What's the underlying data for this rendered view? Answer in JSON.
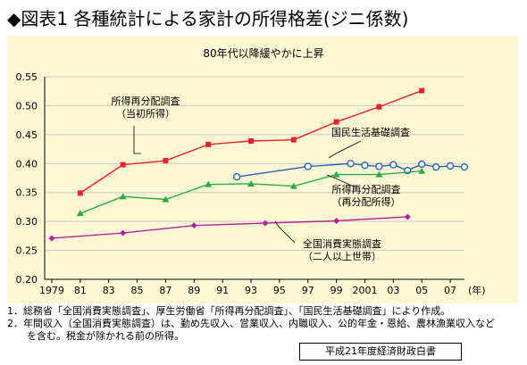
{
  "header": {
    "title": "◆図表1 各種統計による家計の所得格差(ジニ係数)"
  },
  "chart_data": {
    "type": "line",
    "title": "80年代以降緩やかに上昇",
    "ylim": [
      0.2,
      0.55
    ],
    "xlim": [
      1978.5,
      2008
    ],
    "yticks": [
      "0.20",
      "0.25",
      "0.30",
      "0.35",
      "0.40",
      "0.45",
      "0.50",
      "0.55"
    ],
    "ytick_values": [
      0.2,
      0.25,
      0.3,
      0.35,
      0.4,
      0.45,
      0.5,
      0.55
    ],
    "xticks": [
      {
        "x": 1979,
        "label": "1979"
      },
      {
        "x": 1981,
        "label": "81"
      },
      {
        "x": 1983,
        "label": "83"
      },
      {
        "x": 1985,
        "label": "85"
      },
      {
        "x": 1987,
        "label": "87"
      },
      {
        "x": 1989,
        "label": "89"
      },
      {
        "x": 1991,
        "label": "91"
      },
      {
        "x": 1993,
        "label": "93"
      },
      {
        "x": 1995,
        "label": "95"
      },
      {
        "x": 1997,
        "label": "97"
      },
      {
        "x": 1999,
        "label": "99"
      },
      {
        "x": 2001,
        "label": "2001"
      },
      {
        "x": 2003,
        "label": "03"
      },
      {
        "x": 2005,
        "label": "05"
      },
      {
        "x": 2007,
        "label": "07"
      }
    ],
    "x_unit": "(年)",
    "grid": true,
    "series": [
      {
        "name": "所得再分配調査(当初所得)",
        "color": "#e8202a",
        "marker": "square",
        "points": [
          [
            1981,
            0.349
          ],
          [
            1984,
            0.398
          ],
          [
            1987,
            0.405
          ],
          [
            1990,
            0.433
          ],
          [
            1993,
            0.439
          ],
          [
            1996,
            0.441
          ],
          [
            1999,
            0.472
          ],
          [
            2002,
            0.498
          ],
          [
            2005,
            0.526
          ]
        ]
      },
      {
        "name": "国民生活基礎調査",
        "color": "#2a62b0",
        "marker": "circle-open",
        "points": [
          [
            1992,
            0.377
          ],
          [
            1997,
            0.395
          ],
          [
            2000,
            0.4
          ],
          [
            2001,
            0.397
          ],
          [
            2002,
            0.395
          ],
          [
            2003,
            0.398
          ],
          [
            2004,
            0.388
          ],
          [
            2005,
            0.399
          ],
          [
            2006,
            0.394
          ],
          [
            2007,
            0.396
          ],
          [
            2008,
            0.394
          ]
        ]
      },
      {
        "name": "所得再分配調査(再分配所得)",
        "color": "#2eaa48",
        "marker": "triangle",
        "points": [
          [
            1981,
            0.314
          ],
          [
            1984,
            0.343
          ],
          [
            1987,
            0.338
          ],
          [
            1990,
            0.364
          ],
          [
            1993,
            0.365
          ],
          [
            1996,
            0.361
          ],
          [
            1999,
            0.381
          ],
          [
            2002,
            0.381
          ],
          [
            2005,
            0.387
          ]
        ]
      },
      {
        "name": "全国消費実態調査(二人以上世帯)",
        "color": "#b0239a",
        "marker": "diamond",
        "points": [
          [
            1979,
            0.271
          ],
          [
            1984,
            0.28
          ],
          [
            1989,
            0.293
          ],
          [
            1994,
            0.297
          ],
          [
            1999,
            0.301
          ],
          [
            2004,
            0.308
          ]
        ]
      }
    ],
    "annotations": [
      {
        "lines": [
          "所得再分配調査",
          "（当初所得）"
        ]
      },
      {
        "lines": [
          "国民生活基礎調査"
        ]
      },
      {
        "lines": [
          "所得再分配調査",
          "（再分配所得）"
        ]
      },
      {
        "lines": [
          "全国消費実態調査",
          "（二人以上世帯）"
        ]
      }
    ]
  },
  "notes": [
    "1．総務省「全国消費実態調査」、厚生労働省「所得再分配調査」、「国民生活基礎調査」により作成。",
    "2．年間収入（全国消費実態調査）は、勤め先収入、営業収入、内職収入、公的年金・恩給、農林漁業収入など",
    "　　を含む。税金が除かれる前の所得。"
  ],
  "source": "平成21年度経済財政白書"
}
